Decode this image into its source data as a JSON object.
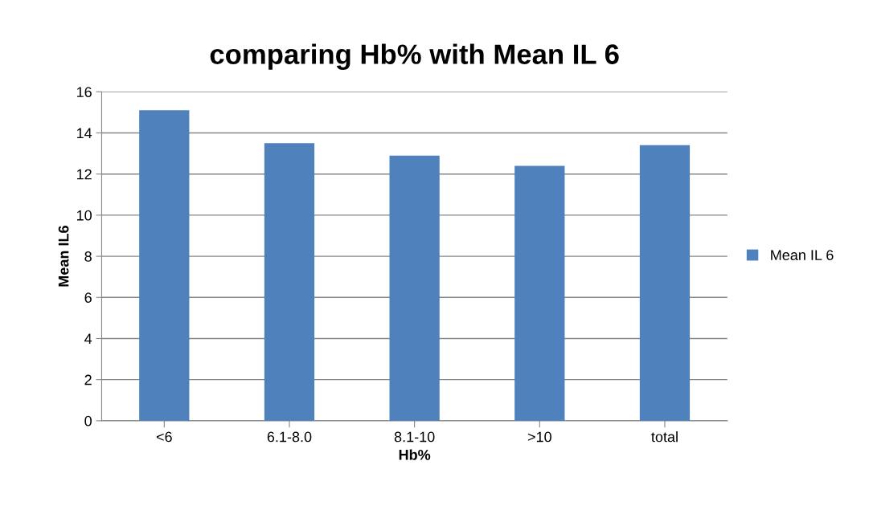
{
  "chart_data": {
    "type": "bar",
    "title": "comparing Hb% with Mean IL 6",
    "xlabel": "Hb%",
    "ylabel": "Mean IL6",
    "categories": [
      "<6",
      "6.1-8.0",
      "8.1-10",
      ">10",
      "total"
    ],
    "series": [
      {
        "name": "Mean IL 6",
        "color": "#4f81bd",
        "values": [
          15.1,
          13.5,
          12.9,
          12.4,
          13.4
        ]
      }
    ],
    "ylim": [
      0,
      16
    ],
    "yticks": [
      0,
      2,
      4,
      6,
      8,
      10,
      12,
      14,
      16
    ],
    "grid": "y",
    "legend": "right"
  }
}
